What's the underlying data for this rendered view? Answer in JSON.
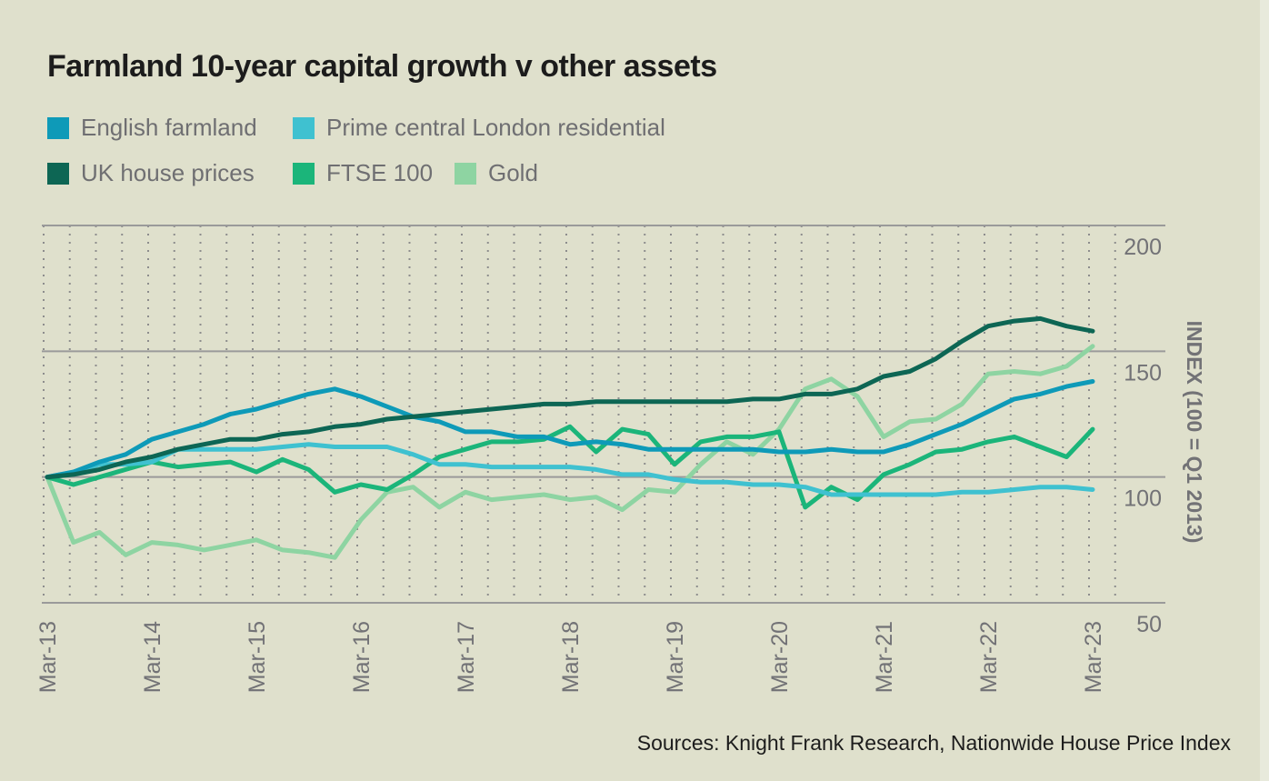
{
  "title": "Farmland 10-year capital growth v other assets",
  "source": "Sources: Knight Frank Research, Nationwide House Price Index",
  "chart_data": {
    "type": "line",
    "title": "Farmland 10-year capital growth v other assets",
    "xlabel": "",
    "ylabel": "INDEX (100 = Q1 2013)",
    "ylim": [
      50,
      200
    ],
    "yticks": [
      200,
      150,
      100,
      50
    ],
    "xtick_labels": [
      "Mar-13",
      "Mar-14",
      "Mar-15",
      "Mar-16",
      "Mar-17",
      "Mar-18",
      "Mar-19",
      "Mar-20",
      "Mar-21",
      "Mar-22",
      "Mar-23"
    ],
    "x_frequency": "quarterly",
    "x_start": "Mar-13",
    "x_end": "Mar-23",
    "legend_position": "top-left",
    "grid": {
      "horizontal": true,
      "vertical_dotted": true
    },
    "series": [
      {
        "name": "English farmland",
        "color": "#0e9ab8",
        "values": [
          100,
          102,
          106,
          109,
          115,
          118,
          121,
          125,
          127,
          130,
          133,
          135,
          132,
          128,
          124,
          122,
          118,
          118,
          116,
          116,
          113,
          114,
          113,
          111,
          111,
          111,
          111,
          111,
          110,
          110,
          111,
          110,
          110,
          113,
          117,
          121,
          126,
          131,
          133,
          136,
          138
        ]
      },
      {
        "name": "Prime central London residential",
        "color": "#3fc1d0",
        "values": [
          100,
          102,
          105,
          105,
          106,
          111,
          111,
          111,
          111,
          112,
          113,
          112,
          112,
          112,
          109,
          105,
          105,
          104,
          104,
          104,
          104,
          103,
          101,
          101,
          99,
          98,
          98,
          97,
          97,
          96,
          93,
          93,
          93,
          93,
          93,
          94,
          94,
          95,
          96,
          96,
          95
        ]
      },
      {
        "name": "UK house prices",
        "color": "#0d6654",
        "values": [
          100,
          101,
          103,
          106,
          108,
          111,
          113,
          115,
          115,
          117,
          118,
          120,
          121,
          123,
          124,
          125,
          126,
          127,
          128,
          129,
          129,
          130,
          130,
          130,
          130,
          130,
          130,
          131,
          131,
          133,
          133,
          135,
          140,
          142,
          147,
          154,
          160,
          162,
          163,
          160,
          158
        ]
      },
      {
        "name": "FTSE 100",
        "color": "#1bb57a",
        "values": [
          100,
          97,
          100,
          103,
          106,
          104,
          105,
          106,
          102,
          107,
          103,
          94,
          97,
          95,
          101,
          108,
          111,
          114,
          114,
          115,
          120,
          110,
          119,
          117,
          105,
          114,
          116,
          116,
          118,
          88,
          96,
          91,
          101,
          105,
          110,
          111,
          114,
          116,
          112,
          108,
          119
        ]
      },
      {
        "name": "Gold",
        "color": "#8ed4a2",
        "values": [
          100,
          74,
          78,
          69,
          74,
          73,
          71,
          73,
          75,
          71,
          70,
          68,
          83,
          94,
          96,
          88,
          94,
          91,
          92,
          93,
          91,
          92,
          87,
          95,
          94,
          105,
          114,
          109,
          119,
          135,
          139,
          132,
          116,
          122,
          123,
          129,
          141,
          142,
          141,
          144,
          152
        ]
      }
    ]
  }
}
